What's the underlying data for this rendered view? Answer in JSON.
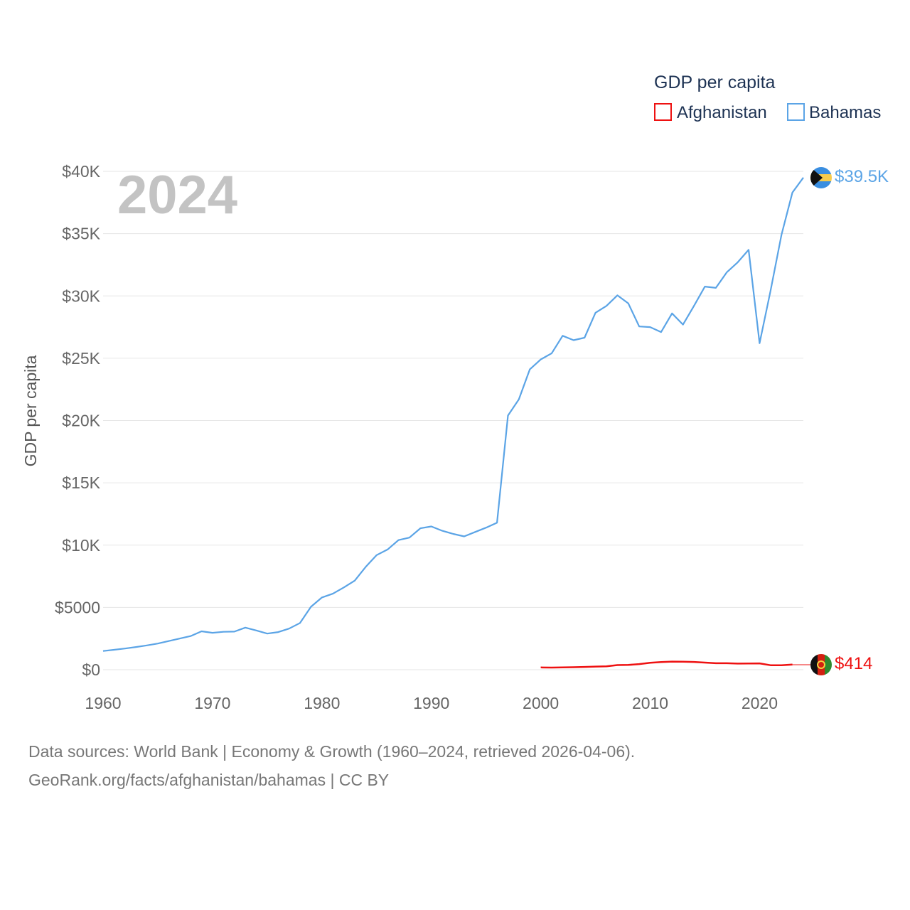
{
  "chart_data": {
    "type": "line",
    "year_label": "2024",
    "legend": {
      "title": "GDP per capita",
      "items": [
        {
          "name": "Afghanistan",
          "color": "#ee1111"
        },
        {
          "name": "Bahamas",
          "color": "#5ba4e6"
        }
      ]
    },
    "ylabel": "GDP per capita",
    "ylim": [
      0,
      40000
    ],
    "xlim": [
      1960,
      2024
    ],
    "y_ticks": [
      {
        "value": 0,
        "label": "$0"
      },
      {
        "value": 5000,
        "label": "$5000"
      },
      {
        "value": 10000,
        "label": "$10K"
      },
      {
        "value": 15000,
        "label": "$15K"
      },
      {
        "value": 20000,
        "label": "$20K"
      },
      {
        "value": 25000,
        "label": "$25K"
      },
      {
        "value": 30000,
        "label": "$30K"
      },
      {
        "value": 35000,
        "label": "$35K"
      },
      {
        "value": 40000,
        "label": "$40K"
      }
    ],
    "x_ticks": [
      {
        "value": 1960,
        "label": "1960"
      },
      {
        "value": 1970,
        "label": "1970"
      },
      {
        "value": 1980,
        "label": "1980"
      },
      {
        "value": 1990,
        "label": "1990"
      },
      {
        "value": 2000,
        "label": "2000"
      },
      {
        "value": 2010,
        "label": "2010"
      },
      {
        "value": 2020,
        "label": "2020"
      }
    ],
    "series": [
      {
        "name": "Bahamas",
        "color": "#5ba4e6",
        "end_label": "$39.5K",
        "x": [
          1960,
          1961,
          1962,
          1963,
          1964,
          1965,
          1966,
          1967,
          1968,
          1969,
          1970,
          1971,
          1972,
          1973,
          1974,
          1975,
          1976,
          1977,
          1978,
          1979,
          1980,
          1981,
          1982,
          1983,
          1984,
          1985,
          1986,
          1987,
          1988,
          1989,
          1990,
          1991,
          1992,
          1993,
          1994,
          1995,
          1996,
          1997,
          1998,
          1999,
          2000,
          2001,
          2002,
          2003,
          2004,
          2005,
          2006,
          2007,
          2008,
          2009,
          2010,
          2011,
          2012,
          2013,
          2014,
          2015,
          2016,
          2017,
          2018,
          2019,
          2020,
          2021,
          2022,
          2023,
          2024
        ],
        "values": [
          1500,
          1600,
          1700,
          1820,
          1950,
          2100,
          2300,
          2500,
          2700,
          3080,
          2960,
          3040,
          3060,
          3380,
          3150,
          2900,
          3020,
          3300,
          3750,
          5050,
          5800,
          6100,
          6600,
          7150,
          8250,
          9200,
          9650,
          10400,
          10600,
          11350,
          11500,
          11150,
          10900,
          10700,
          11050,
          11400,
          11800,
          20400,
          21700,
          24100,
          24900,
          25400,
          26800,
          26450,
          26650,
          28650,
          29200,
          30050,
          29400,
          27550,
          27500,
          27100,
          28600,
          27700,
          29200,
          30750,
          30650,
          31900,
          32700,
          33700,
          26200,
          30400,
          34900,
          38300,
          39500
        ]
      },
      {
        "name": "Afghanistan",
        "color": "#ee1111",
        "end_label": "$414",
        "x": [
          2000,
          2001,
          2002,
          2003,
          2004,
          2005,
          2006,
          2007,
          2008,
          2009,
          2010,
          2011,
          2012,
          2013,
          2014,
          2015,
          2016,
          2017,
          2018,
          2019,
          2020,
          2021,
          2022,
          2023
        ],
        "values": [
          180,
          170,
          190,
          200,
          220,
          250,
          270,
          370,
          380,
          450,
          560,
          610,
          650,
          640,
          620,
          570,
          520,
          520,
          490,
          500,
          510,
          360,
          360,
          414
        ]
      }
    ]
  },
  "source": {
    "line1": "Data sources: World Bank | Economy & Growth (1960–2024, retrieved 2026-04-06).",
    "line2": "GeoRank.org/facts/afghanistan/bahamas | CC BY"
  }
}
